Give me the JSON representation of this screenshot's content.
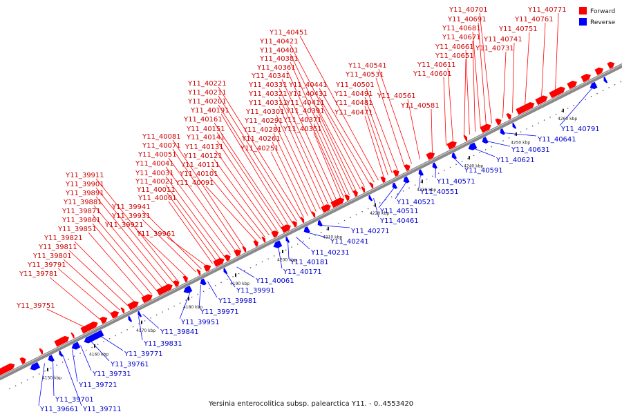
{
  "title": "Yersinia enterocolitica subsp. palearctica Y11. - 0..4553420",
  "legend": [
    {
      "label": "Forward",
      "color": "#ff0000"
    },
    {
      "label": "Reverse",
      "color": "#0000ff"
    }
  ],
  "colors": {
    "forward": "#ff0000",
    "reverse": "#0000ff",
    "backbone": "#555555"
  },
  "scale": {
    "start_kbp": 4150,
    "end_kbp": 4260,
    "step_kbp": 10,
    "unit": "kbp"
  },
  "forward_labels": [
    "Y11_39751",
    "Y11_39781",
    "Y11_39791",
    "Y11_39801",
    "Y11_39811",
    "Y11_39821",
    "Y11_39851",
    "Y11_39861",
    "Y11_39871",
    "Y11_39881",
    "Y11_39891",
    "Y11_39901",
    "Y11_39911",
    "Y11_39921",
    "Y11_39931",
    "Y11_39941",
    "Y11_39961",
    "Y11_40001",
    "Y11_40011",
    "Y11_40021",
    "Y11_40031",
    "Y11_40041",
    "Y11_40051",
    "Y11_40071",
    "Y11_40081",
    "Y11_40091",
    "Y11_40101",
    "Y11_40111",
    "Y11_40121",
    "Y11_40131",
    "Y11_40141",
    "Y11_40151",
    "Y11_40161",
    "Y11_40191",
    "Y11_40201",
    "Y11_40211",
    "Y11_40221",
    "Y11_40251",
    "Y11_40261",
    "Y11_40281",
    "Y11_40291",
    "Y11_40301",
    "Y11_40311",
    "Y11_40321",
    "Y11_40331",
    "Y11_40341",
    "Y11_40351",
    "Y11_40361",
    "Y11_40371",
    "Y11_40381",
    "Y11_40391",
    "Y11_40401",
    "Y11_40411",
    "Y11_40421",
    "Y11_40431",
    "Y11_40441",
    "Y11_40451",
    "Y11_40471",
    "Y11_40481",
    "Y11_40491",
    "Y11_40501",
    "Y11_40531",
    "Y11_40541",
    "Y11_40561",
    "Y11_40581",
    "Y11_40601",
    "Y11_40611",
    "Y11_40651",
    "Y11_40661",
    "Y11_40671",
    "Y11_40681",
    "Y11_40691",
    "Y11_40701",
    "Y11_40731",
    "Y11_40741",
    "Y11_40751",
    "Y11_40761",
    "Y11_40771"
  ],
  "reverse_labels": [
    "Y11_39661",
    "Y11_39701",
    "Y11_39711",
    "Y11_39721",
    "Y11_39731",
    "Y11_39761",
    "Y11_39771",
    "Y11_39831",
    "Y11_39841",
    "Y11_39951",
    "Y11_39971",
    "Y11_39981",
    "Y11_39991",
    "Y11_40061",
    "Y11_40171",
    "Y11_40181",
    "Y11_40231",
    "Y11_40241",
    "Y11_40271",
    "Y11_40461",
    "Y11_40511",
    "Y11_40521",
    "Y11_40551",
    "Y11_40571",
    "Y11_40591",
    "Y11_40621",
    "Y11_40631",
    "Y11_40641",
    "Y11_40791"
  ]
}
